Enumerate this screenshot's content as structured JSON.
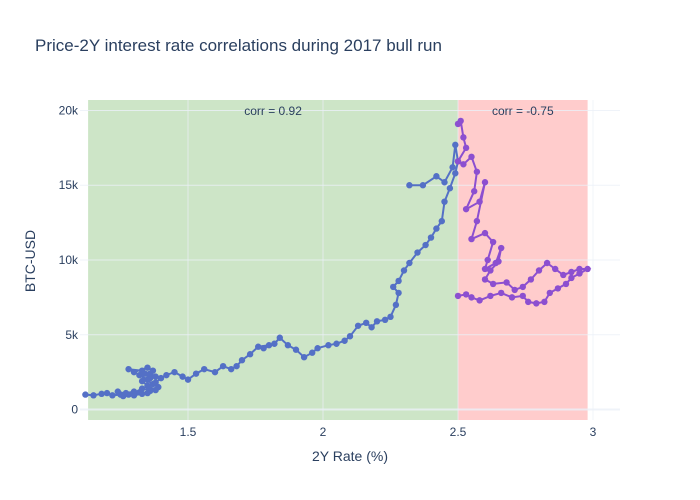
{
  "chart_data": {
    "type": "scatter",
    "mode": "lines+markers",
    "title": "Price-2Y interest rate correlations during 2017 bull run",
    "xlabel": "2Y Rate (%)",
    "ylabel": "BTC-USD",
    "xlim": [
      1.1,
      3.1
    ],
    "ylim": [
      -700,
      20700
    ],
    "x_ticks": [
      1.5,
      2,
      2.5,
      3
    ],
    "x_tick_labels": [
      "1.5",
      "2",
      "2.5",
      "3"
    ],
    "y_ticks": [
      0,
      5000,
      10000,
      15000,
      20000
    ],
    "y_tick_labels": [
      "0",
      "5k",
      "10k",
      "15k",
      "20k"
    ],
    "grid": true,
    "regions": [
      {
        "x0": 1.13,
        "x1": 2.5,
        "color": "#cde5c7",
        "label": "corr = 0.92"
      },
      {
        "x0": 2.5,
        "x1": 2.98,
        "color": "#ffcccc",
        "label": "corr = -0.75"
      }
    ],
    "series": [
      {
        "color": "#5470c6",
        "points": [
          [
            1.12,
            1000
          ],
          [
            1.15,
            950
          ],
          [
            1.18,
            1050
          ],
          [
            1.2,
            1100
          ],
          [
            1.22,
            950
          ],
          [
            1.25,
            1000
          ],
          [
            1.27,
            1100
          ],
          [
            1.3,
            1200
          ],
          [
            1.32,
            1150
          ],
          [
            1.35,
            1100
          ],
          [
            1.28,
            1000
          ],
          [
            1.24,
            1200
          ],
          [
            1.26,
            900
          ],
          [
            1.3,
            950
          ],
          [
            1.33,
            1050
          ],
          [
            1.36,
            1250
          ],
          [
            1.38,
            1300
          ],
          [
            1.35,
            1600
          ],
          [
            1.33,
            1900
          ],
          [
            1.36,
            2100
          ],
          [
            1.34,
            2400
          ],
          [
            1.37,
            2600
          ],
          [
            1.35,
            2800
          ],
          [
            1.3,
            2500
          ],
          [
            1.28,
            2700
          ],
          [
            1.33,
            2600
          ],
          [
            1.36,
            2400
          ],
          [
            1.38,
            2200
          ],
          [
            1.35,
            2000
          ],
          [
            1.32,
            2300
          ],
          [
            1.37,
            1700
          ],
          [
            1.39,
            1500
          ],
          [
            1.36,
            1300
          ],
          [
            1.33,
            1400
          ],
          [
            1.38,
            1800
          ],
          [
            1.4,
            2100
          ],
          [
            1.42,
            2300
          ],
          [
            1.45,
            2500
          ],
          [
            1.48,
            2200
          ],
          [
            1.5,
            2000
          ],
          [
            1.53,
            2400
          ],
          [
            1.56,
            2700
          ],
          [
            1.6,
            2500
          ],
          [
            1.63,
            2900
          ],
          [
            1.66,
            2700
          ],
          [
            1.68,
            2900
          ],
          [
            1.7,
            3300
          ],
          [
            1.73,
            3700
          ],
          [
            1.76,
            4200
          ],
          [
            1.8,
            4300
          ],
          [
            1.78,
            4100
          ],
          [
            1.82,
            4400
          ],
          [
            1.84,
            4800
          ],
          [
            1.87,
            4300
          ],
          [
            1.9,
            4000
          ],
          [
            1.93,
            3500
          ],
          [
            1.96,
            3800
          ],
          [
            1.98,
            4100
          ],
          [
            2.02,
            4300
          ],
          [
            2.05,
            4400
          ],
          [
            2.08,
            4600
          ],
          [
            2.1,
            4900
          ],
          [
            2.13,
            5600
          ],
          [
            2.16,
            5800
          ],
          [
            2.18,
            5500
          ],
          [
            2.2,
            5900
          ],
          [
            2.23,
            6000
          ],
          [
            2.25,
            6200
          ],
          [
            2.27,
            7000
          ],
          [
            2.28,
            7800
          ],
          [
            2.26,
            8200
          ],
          [
            2.28,
            8600
          ],
          [
            2.3,
            9300
          ],
          [
            2.32,
            9800
          ],
          [
            2.35,
            10500
          ],
          [
            2.38,
            11000
          ],
          [
            2.4,
            11500
          ],
          [
            2.42,
            12100
          ],
          [
            2.44,
            12600
          ],
          [
            2.45,
            13900
          ],
          [
            2.47,
            14800
          ],
          [
            2.49,
            15800
          ],
          [
            2.5,
            16600
          ],
          [
            2.49,
            17700
          ],
          [
            2.48,
            16200
          ],
          [
            2.45,
            15200
          ],
          [
            2.42,
            15600
          ],
          [
            2.37,
            15000
          ],
          [
            2.32,
            15000
          ]
        ]
      },
      {
        "color": "#8c4fd0",
        "points": [
          [
            2.5,
            19100
          ],
          [
            2.51,
            19300
          ],
          [
            2.52,
            18200
          ],
          [
            2.53,
            17500
          ],
          [
            2.5,
            16600
          ],
          [
            2.52,
            16400
          ],
          [
            2.55,
            16900
          ],
          [
            2.57,
            15900
          ],
          [
            2.56,
            14600
          ],
          [
            2.53,
            13400
          ],
          [
            2.58,
            13900
          ],
          [
            2.6,
            15200
          ],
          [
            2.57,
            12600
          ],
          [
            2.55,
            11400
          ],
          [
            2.6,
            11800
          ],
          [
            2.63,
            11200
          ],
          [
            2.61,
            10000
          ],
          [
            2.6,
            9400
          ],
          [
            2.64,
            9800
          ],
          [
            2.66,
            10800
          ],
          [
            2.65,
            9900
          ],
          [
            2.62,
            9300
          ],
          [
            2.6,
            8700
          ],
          [
            2.63,
            8400
          ],
          [
            2.68,
            8500
          ],
          [
            2.71,
            8000
          ],
          [
            2.74,
            8200
          ],
          [
            2.77,
            8700
          ],
          [
            2.8,
            9300
          ],
          [
            2.83,
            9800
          ],
          [
            2.86,
            9400
          ],
          [
            2.89,
            9000
          ],
          [
            2.92,
            9200
          ],
          [
            2.95,
            9400
          ],
          [
            2.98,
            9400
          ],
          [
            2.95,
            9100
          ],
          [
            2.92,
            8800
          ],
          [
            2.9,
            8400
          ],
          [
            2.87,
            8100
          ],
          [
            2.84,
            7800
          ],
          [
            2.82,
            7200
          ],
          [
            2.79,
            7100
          ],
          [
            2.76,
            7200
          ],
          [
            2.74,
            7600
          ],
          [
            2.7,
            7500
          ],
          [
            2.66,
            7800
          ],
          [
            2.62,
            7600
          ],
          [
            2.58,
            7300
          ],
          [
            2.55,
            7500
          ],
          [
            2.53,
            7700
          ],
          [
            2.5,
            7600
          ]
        ]
      }
    ]
  }
}
